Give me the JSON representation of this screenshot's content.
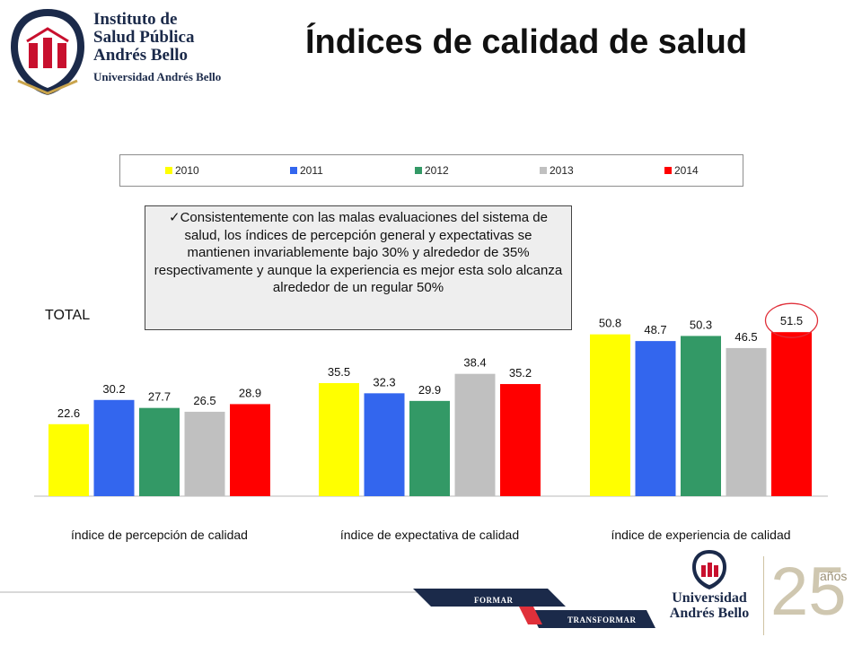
{
  "header": {
    "logo_lines": [
      "Instituto de",
      "Salud Pública",
      "Andrés Bello"
    ],
    "logo_sub": "Universidad Andrés Bello",
    "title": "Índices de calidad de salud"
  },
  "callout": {
    "text": "✓Consistentemente con las malas evaluaciones del sistema de salud, los índices de percepción general y expectativas se mantienen invariablemente bajo 30% y alrededor de 35% respectivamente y aunque la experiencia es mejor esta solo alcanza alrededor de un regular 50%"
  },
  "total_label": "TOTAL",
  "chart_data": {
    "type": "bar",
    "categories": [
      "índice de percepción de calidad",
      "índice de expectativa de calidad",
      "índice de experiencia de calidad"
    ],
    "series": [
      {
        "name": "2010",
        "color": "#ffff00",
        "values": [
          22.6,
          35.5,
          50.8
        ]
      },
      {
        "name": "2011",
        "color": "#3366ee",
        "values": [
          30.2,
          32.3,
          48.7
        ]
      },
      {
        "name": "2012",
        "color": "#339966",
        "values": [
          27.7,
          29.9,
          50.3
        ]
      },
      {
        "name": "2013",
        "color": "#c0c0c0",
        "values": [
          26.5,
          38.4,
          46.5
        ]
      },
      {
        "name": "2014",
        "color": "#ff0000",
        "values": [
          28.9,
          35.2,
          51.5
        ]
      }
    ],
    "highlighted": {
      "series": "2014",
      "category": "índice de experiencia de calidad",
      "value": 51.5,
      "marker": "circle"
    },
    "legend_position": "top",
    "grid": false,
    "ylim": [
      0,
      60
    ]
  },
  "footer": {
    "tag_1": "FORMAR",
    "tag_2": "TRANSFORMAR",
    "logo_lines": [
      "Universidad",
      "Andrés Bello"
    ],
    "anniversary_number": "25",
    "anniversary_word": "años"
  }
}
